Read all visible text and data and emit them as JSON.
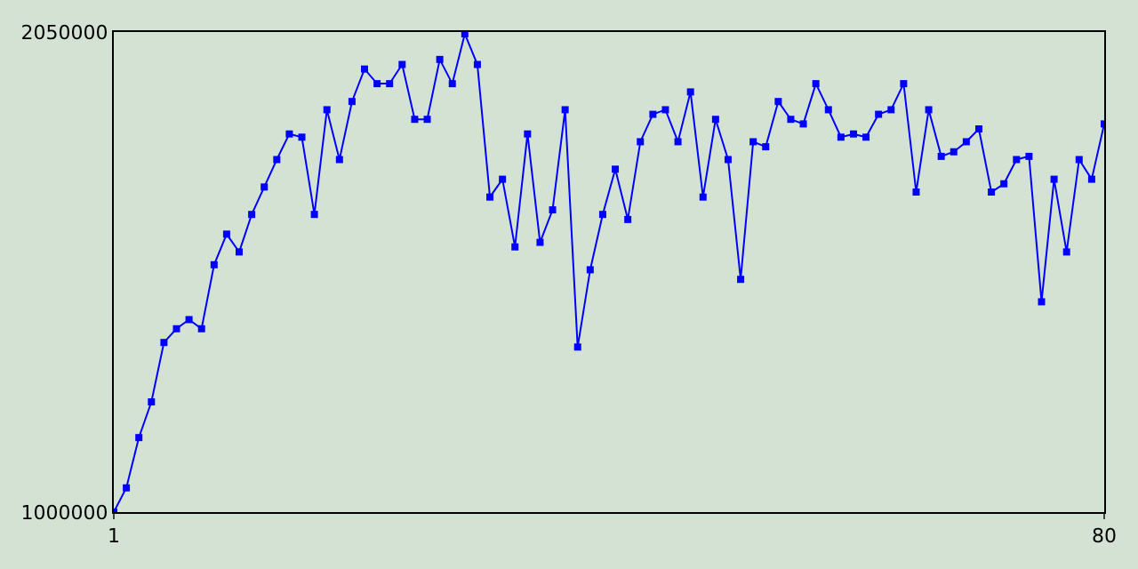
{
  "chart_data": {
    "type": "line",
    "x": [
      1,
      2,
      3,
      4,
      5,
      6,
      7,
      8,
      9,
      10,
      11,
      12,
      13,
      14,
      15,
      16,
      17,
      18,
      19,
      20,
      21,
      22,
      23,
      24,
      25,
      26,
      27,
      28,
      29,
      30,
      31,
      32,
      33,
      34,
      35,
      36,
      37,
      38,
      39,
      40,
      41,
      42,
      43,
      44,
      45,
      46,
      47,
      48,
      49,
      50,
      51,
      52,
      53,
      54,
      55,
      56,
      57,
      58,
      59,
      60,
      61,
      62,
      63,
      64,
      65,
      66,
      67,
      68,
      69,
      70,
      71,
      72,
      73,
      74,
      75,
      76,
      77,
      78,
      79,
      80
    ],
    "series": [
      {
        "color": "#0000ff",
        "values": [
          1000000,
          1053000,
          1163000,
          1241000,
          1371000,
          1401000,
          1421000,
          1401000,
          1541000,
          1608000,
          1569000,
          1651000,
          1711000,
          1771000,
          1827000,
          1820000,
          1651000,
          1880000,
          1771000,
          1898000,
          1969000,
          1937000,
          1937000,
          1979000,
          1859000,
          1859000,
          1990000,
          1937000,
          2046000,
          1979000,
          1689000,
          1728000,
          1580000,
          1827000,
          1590000,
          1661000,
          1880000,
          1361000,
          1530000,
          1651000,
          1750000,
          1640000,
          1810000,
          1870000,
          1880000,
          1810000,
          1919000,
          1689000,
          1859000,
          1771000,
          1509000,
          1810000,
          1799000,
          1898000,
          1859000,
          1849000,
          1937000,
          1880000,
          1820000,
          1827000,
          1820000,
          1870000,
          1880000,
          1937000,
          1700000,
          1880000,
          1778000,
          1788000,
          1810000,
          1838000,
          1700000,
          1718000,
          1771000,
          1778000,
          1460000,
          1728000,
          1569000,
          1771000,
          1728000,
          1849000
        ]
      }
    ],
    "xlim": [
      1,
      80
    ],
    "xticks": [
      1,
      80
    ],
    "ylim": [
      1000000,
      2050000
    ],
    "yticks": [
      1000000,
      2050000
    ],
    "marker": "square",
    "line_style": "solid"
  }
}
